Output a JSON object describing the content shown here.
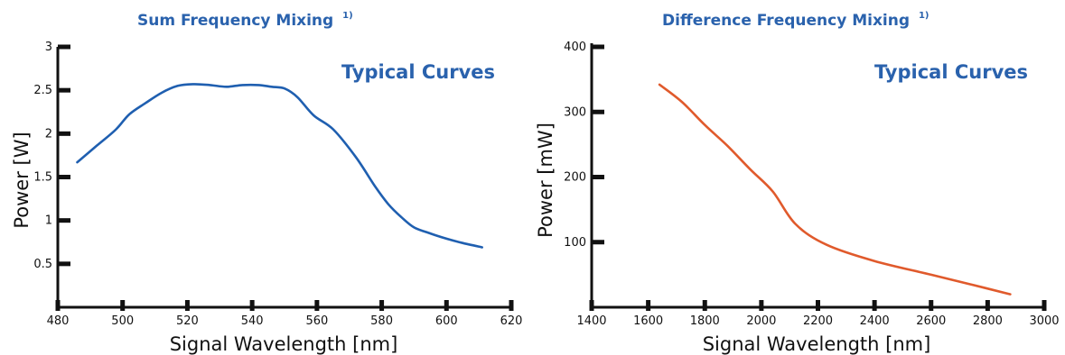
{
  "colors": {
    "title": "#2a62ad",
    "series_left": "#1f5fb0",
    "series_right": "#e05a2c",
    "axis": "#111111"
  },
  "chart_data": [
    {
      "type": "line",
      "title": "Sum Frequency Mixing",
      "title_footnote": "1)",
      "annotation": "Typical Curves",
      "xlabel": "Signal Wavelength [nm]",
      "ylabel": "Power [W]",
      "xlim": [
        480,
        620
      ],
      "ylim": [
        0,
        3
      ],
      "xticks": [
        480,
        500,
        520,
        540,
        560,
        580,
        600,
        620
      ],
      "yticks": [
        0.5,
        1,
        1.5,
        2,
        2.5,
        3
      ],
      "ytick_labels": [
        "0.5",
        "1",
        "1.5",
        "2",
        "2.5",
        "3"
      ],
      "grid": false,
      "legend": "none",
      "series": [
        {
          "x": [
            486,
            492,
            498,
            502,
            507,
            512,
            517,
            522,
            527,
            532,
            537,
            542,
            546,
            550,
            554,
            559,
            565,
            572,
            578,
            582,
            586,
            590,
            595,
            600,
            605,
            611
          ],
          "y": [
            1.67,
            1.86,
            2.05,
            2.22,
            2.35,
            2.47,
            2.55,
            2.57,
            2.56,
            2.54,
            2.56,
            2.56,
            2.54,
            2.52,
            2.42,
            2.21,
            2.05,
            1.73,
            1.39,
            1.19,
            1.04,
            0.92,
            0.85,
            0.79,
            0.74,
            0.69
          ]
        }
      ]
    },
    {
      "type": "line",
      "title": "Difference Frequency Mixing",
      "title_footnote": "1)",
      "annotation": "Typical Curves",
      "xlabel": "Signal Wavelength [nm]",
      "ylabel": "Power [mW]",
      "xlim": [
        1400,
        3000
      ],
      "ylim": [
        0,
        400
      ],
      "xticks": [
        1400,
        1600,
        1800,
        2000,
        2200,
        2400,
        2600,
        2800,
        3000
      ],
      "yticks": [
        100,
        200,
        300,
        400
      ],
      "ytick_labels": [
        "100",
        "200",
        "300",
        "400"
      ],
      "grid": false,
      "legend": "none",
      "series": [
        {
          "x": [
            1640,
            1720,
            1800,
            1880,
            1960,
            2040,
            2120,
            2230,
            2400,
            2600,
            2750,
            2880
          ],
          "y": [
            342,
            315,
            280,
            248,
            212,
            178,
            128,
            96,
            71,
            50,
            34,
            20
          ]
        }
      ]
    }
  ]
}
